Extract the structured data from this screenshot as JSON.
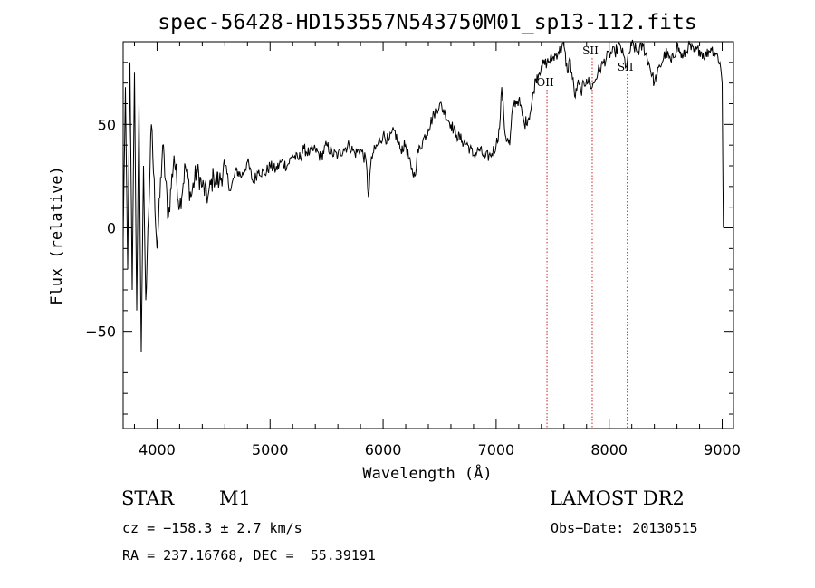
{
  "chart_data": {
    "type": "line",
    "title": "spec-56428-HD153557N543750M01_sp13-112.fits",
    "xlabel": "Wavelength (Å)",
    "ylabel": "Flux (relative)",
    "xlim": [
      3700,
      9100
    ],
    "ylim": [
      -97,
      90
    ],
    "xticks": [
      4000,
      5000,
      6000,
      7000,
      8000,
      9000
    ],
    "yticks": [
      -50,
      0,
      50
    ],
    "grid": false,
    "series": [
      {
        "x": [
          3700,
          3720,
          3740,
          3760,
          3780,
          3800,
          3820,
          3840,
          3860,
          3880,
          3900,
          3950,
          4000,
          4050,
          4100,
          4150,
          4200,
          4250,
          4300,
          4350,
          4400,
          4450,
          4500,
          4550,
          4600,
          4650,
          4700,
          4750,
          4800,
          4850,
          4900,
          4950,
          5000,
          5050,
          5100,
          5150,
          5200,
          5250,
          5300,
          5350,
          5400,
          5450,
          5500,
          5550,
          5600,
          5650,
          5700,
          5750,
          5800,
          5850,
          5870,
          5890,
          5910,
          5950,
          6000,
          6050,
          6100,
          6150,
          6200,
          6250,
          6280,
          6300,
          6350,
          6400,
          6450,
          6500,
          6550,
          6600,
          6650,
          6700,
          6750,
          6800,
          6850,
          6900,
          6950,
          7000,
          7030,
          7050,
          7080,
          7120,
          7150,
          7200,
          7250,
          7300,
          7350,
          7400,
          7450,
          7500,
          7550,
          7600,
          7630,
          7650,
          7700,
          7720,
          7750,
          7800,
          7850,
          7900,
          7950,
          8000,
          8050,
          8100,
          8150,
          8200,
          8250,
          8300,
          8350,
          8400,
          8450,
          8500,
          8550,
          8600,
          8650,
          8700,
          8750,
          8800,
          8850,
          8900,
          8950,
          8980,
          9000,
          9010
        ],
        "y": [
          -5,
          68,
          -20,
          80,
          -30,
          75,
          -40,
          60,
          -60,
          30,
          -35,
          50,
          -10,
          40,
          5,
          35,
          10,
          30,
          15,
          28,
          20,
          15,
          25,
          22,
          30,
          18,
          28,
          25,
          32,
          22,
          28,
          26,
          30,
          28,
          32,
          30,
          35,
          33,
          38,
          36,
          38,
          34,
          40,
          36,
          35,
          38,
          40,
          36,
          38,
          32,
          15,
          30,
          36,
          40,
          45,
          42,
          47,
          38,
          40,
          28,
          25,
          35,
          42,
          48,
          55,
          60,
          55,
          50,
          45,
          42,
          40,
          35,
          38,
          34,
          35,
          40,
          48,
          68,
          45,
          40,
          60,
          62,
          50,
          55,
          72,
          78,
          80,
          82,
          85,
          88,
          75,
          82,
          63,
          70,
          66,
          72,
          68,
          75,
          80,
          84,
          85,
          88,
          78,
          89,
          85,
          88,
          80,
          70,
          78,
          85,
          80,
          88,
          82,
          88,
          85,
          86,
          83,
          87,
          84,
          80,
          70,
          0
        ]
      }
    ],
    "annotations": [
      {
        "label": "OII",
        "x": 7450
      },
      {
        "label": "SII",
        "x": 7850
      },
      {
        "label": "SII",
        "x": 8160
      }
    ]
  },
  "info": {
    "class": "STAR",
    "subclass": "M1",
    "survey": "LAMOST DR2",
    "cz": "cz = −158.3 ± 2.7 km/s",
    "obs_date": "Obs−Date: 20130515",
    "radec": "RA = 237.16768, DEC =  55.39191"
  },
  "colors": {
    "spectrum": "#000000",
    "line_markers": "#cc2222"
  }
}
